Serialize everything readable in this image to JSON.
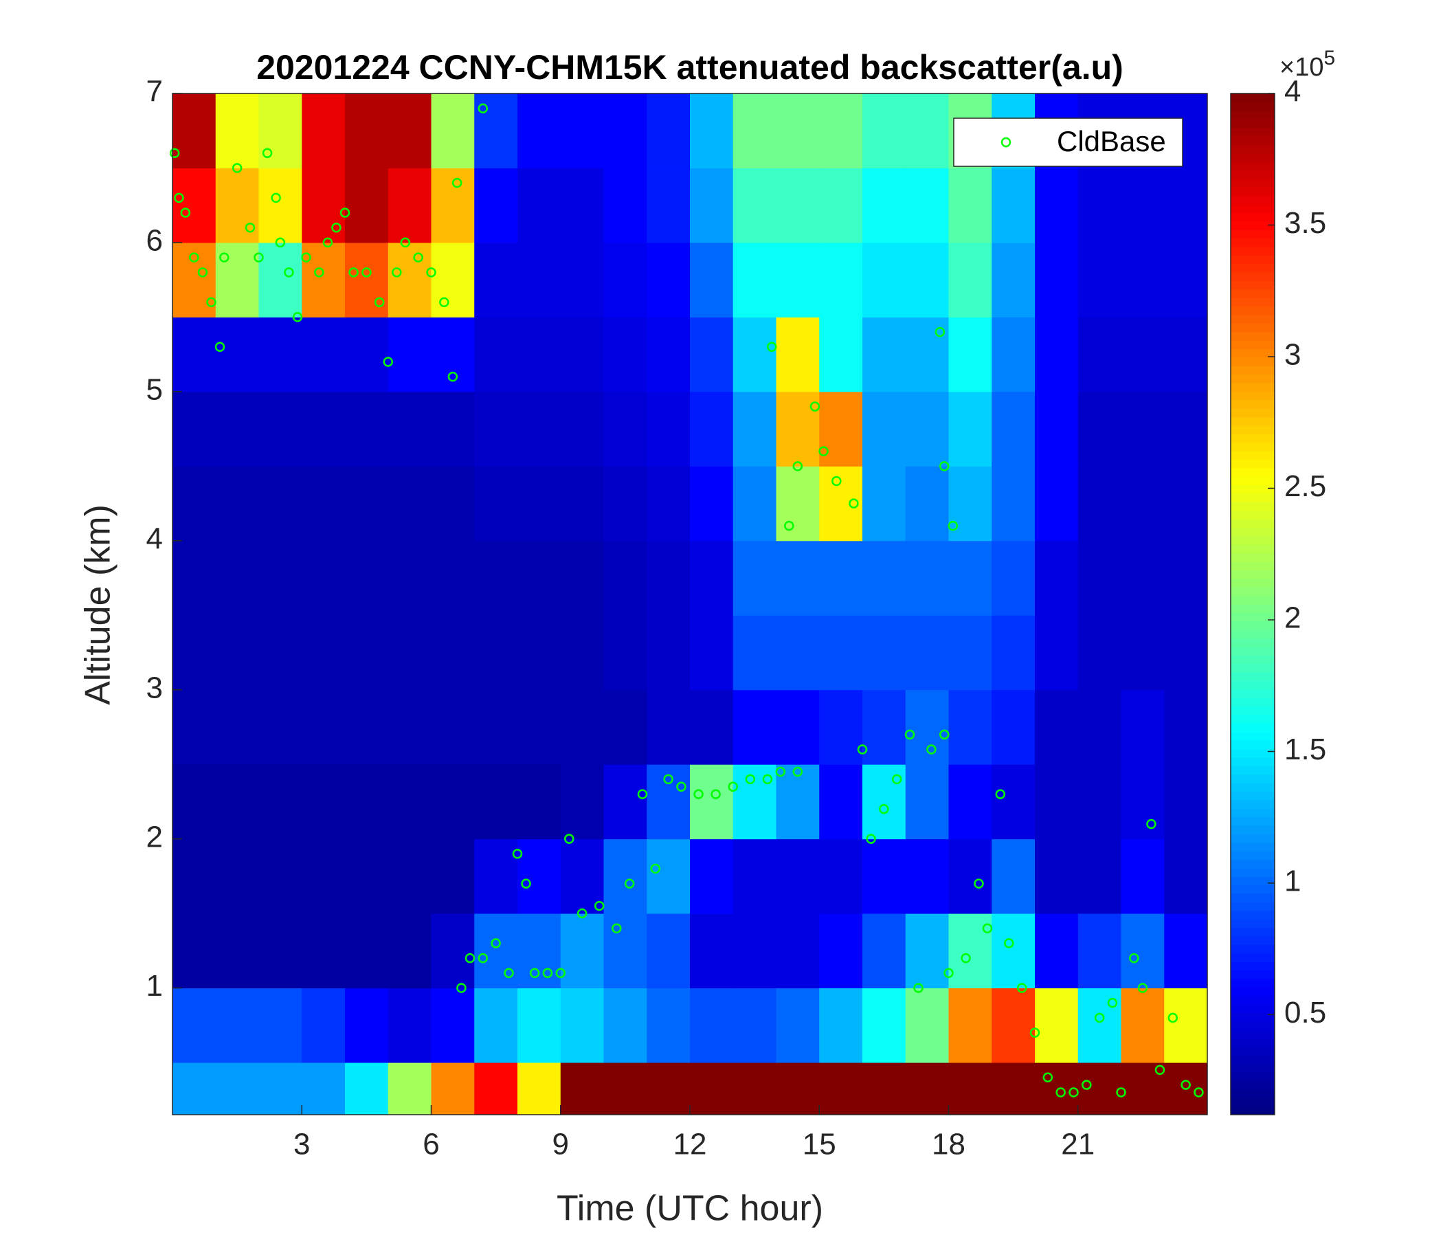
{
  "chart_data": {
    "type": "heatmap",
    "title": "20201224 CCNY-CHM15K attenuated backscatter(a.u)",
    "x_label": "Time (UTC hour)",
    "y_label": "Altitude (km)",
    "xlim": [
      0,
      24
    ],
    "ylim": [
      0.15,
      7
    ],
    "xticks": [
      3,
      6,
      9,
      12,
      15,
      18,
      21
    ],
    "yticks": [
      1,
      2,
      3,
      4,
      5,
      6,
      7
    ],
    "x_edges": [
      0,
      1,
      2,
      3,
      4,
      5,
      6,
      7,
      8,
      9,
      10,
      11,
      12,
      13,
      14,
      15,
      16,
      17,
      18,
      19,
      20,
      21,
      22,
      23,
      24
    ],
    "y_edges": [
      0.15,
      0.5,
      1,
      1.5,
      2,
      2.5,
      3,
      3.5,
      4,
      4.5,
      5,
      5.5,
      6,
      6.5,
      7
    ],
    "z": [
      [
        1.2,
        1.2,
        1.2,
        1.2,
        1.5,
        2.2,
        3.0,
        3.5,
        2.6,
        4,
        4,
        4,
        4,
        4,
        4,
        4,
        4,
        4,
        4,
        4,
        4,
        4,
        4,
        4
      ],
      [
        0.9,
        0.9,
        0.9,
        0.8,
        0.6,
        0.5,
        0.6,
        1.3,
        1.5,
        1.4,
        1.2,
        1.0,
        0.9,
        0.9,
        1.0,
        1.3,
        1.6,
        2.0,
        3.0,
        3.3,
        2.5,
        1.5,
        3.0,
        2.5
      ],
      [
        0.25,
        0.25,
        0.25,
        0.25,
        0.25,
        0.25,
        0.4,
        1.0,
        1.0,
        1.2,
        1.0,
        0.9,
        0.5,
        0.5,
        0.5,
        0.6,
        0.9,
        1.3,
        1.8,
        1.5,
        0.6,
        0.8,
        1.0,
        0.6
      ],
      [
        0.25,
        0.25,
        0.25,
        0.25,
        0.25,
        0.25,
        0.25,
        0.5,
        0.6,
        0.5,
        1.0,
        1.2,
        0.6,
        0.5,
        0.5,
        0.5,
        0.6,
        0.6,
        0.5,
        1.0,
        0.4,
        0.4,
        0.6,
        0.4
      ],
      [
        0.25,
        0.25,
        0.25,
        0.25,
        0.25,
        0.25,
        0.25,
        0.25,
        0.25,
        0.3,
        0.5,
        0.9,
        2.0,
        1.5,
        1.2,
        0.6,
        1.5,
        1.0,
        0.6,
        0.5,
        0.4,
        0.4,
        0.5,
        0.4
      ],
      [
        0.3,
        0.3,
        0.3,
        0.3,
        0.3,
        0.3,
        0.3,
        0.3,
        0.3,
        0.3,
        0.3,
        0.4,
        0.4,
        0.6,
        0.6,
        0.7,
        0.8,
        1.0,
        0.8,
        0.7,
        0.4,
        0.4,
        0.5,
        0.4
      ],
      [
        0.3,
        0.3,
        0.3,
        0.3,
        0.3,
        0.3,
        0.3,
        0.3,
        0.3,
        0.3,
        0.35,
        0.4,
        0.5,
        0.9,
        0.9,
        0.9,
        0.9,
        0.9,
        0.9,
        0.8,
        0.5,
        0.4,
        0.4,
        0.4
      ],
      [
        0.3,
        0.3,
        0.3,
        0.3,
        0.3,
        0.3,
        0.3,
        0.3,
        0.3,
        0.3,
        0.35,
        0.4,
        0.5,
        1.0,
        1.0,
        1.0,
        1.0,
        1.0,
        1.0,
        0.9,
        0.5,
        0.4,
        0.4,
        0.4
      ],
      [
        0.3,
        0.3,
        0.3,
        0.3,
        0.3,
        0.3,
        0.3,
        0.35,
        0.35,
        0.35,
        0.4,
        0.45,
        0.6,
        1.1,
        2.2,
        2.6,
        1.2,
        1.1,
        1.3,
        1.0,
        0.6,
        0.4,
        0.4,
        0.4
      ],
      [
        0.35,
        0.35,
        0.35,
        0.35,
        0.35,
        0.35,
        0.35,
        0.4,
        0.4,
        0.4,
        0.45,
        0.5,
        0.7,
        1.2,
        2.8,
        3.0,
        1.2,
        1.2,
        1.4,
        1.0,
        0.6,
        0.4,
        0.4,
        0.4
      ],
      [
        0.5,
        0.5,
        0.5,
        0.5,
        0.5,
        0.6,
        0.6,
        0.45,
        0.45,
        0.45,
        0.5,
        0.55,
        0.8,
        1.4,
        2.6,
        1.6,
        1.3,
        1.3,
        1.6,
        1.1,
        0.6,
        0.45,
        0.45,
        0.45
      ],
      [
        3.0,
        2.2,
        1.8,
        3.0,
        3.2,
        2.8,
        2.5,
        0.5,
        0.5,
        0.5,
        0.55,
        0.6,
        1.0,
        1.6,
        1.6,
        1.6,
        1.5,
        1.5,
        1.8,
        1.2,
        0.6,
        0.5,
        0.5,
        0.5
      ],
      [
        3.5,
        2.8,
        2.6,
        3.6,
        3.8,
        3.6,
        2.8,
        0.6,
        0.5,
        0.5,
        0.6,
        0.7,
        1.2,
        1.8,
        1.8,
        1.8,
        1.6,
        1.6,
        1.9,
        1.3,
        0.6,
        0.5,
        0.5,
        0.5
      ],
      [
        3.8,
        2.5,
        2.4,
        3.6,
        3.8,
        3.8,
        2.2,
        0.8,
        0.6,
        0.6,
        0.6,
        0.7,
        1.3,
        2.0,
        2.0,
        2.0,
        1.8,
        1.8,
        2.0,
        1.4,
        0.6,
        0.5,
        0.5,
        0.5
      ]
    ],
    "clim": [
      0.12,
      4
    ],
    "colormap": "jet",
    "colorbar_ticks": [
      0.5,
      1,
      1.5,
      2,
      2.5,
      3,
      3.5,
      4
    ],
    "colorbar_multiplier": "×10",
    "colorbar_exponent": "5",
    "legend": "northeast",
    "series": [
      {
        "name": "CldBase",
        "color": "#00ff00",
        "x": [
          0.05,
          0.15,
          0.3,
          0.5,
          0.7,
          0.9,
          1.1,
          1.2,
          1.5,
          1.8,
          2.0,
          2.2,
          2.4,
          2.5,
          2.7,
          2.9,
          3.1,
          3.4,
          3.6,
          3.8,
          4.0,
          4.2,
          4.5,
          4.8,
          5.0,
          5.2,
          5.4,
          5.7,
          6.0,
          6.3,
          6.5,
          6.6,
          7.2,
          6.7,
          6.9,
          7.2,
          7.5,
          7.8,
          8.0,
          8.2,
          8.4,
          8.7,
          9.0,
          9.2,
          9.5,
          9.9,
          10.3,
          10.6,
          10.9,
          11.2,
          11.5,
          11.8,
          12.2,
          12.6,
          13.0,
          13.4,
          13.8,
          14.1,
          14.5,
          13.9,
          14.3,
          14.5,
          14.9,
          15.1,
          15.4,
          15.8,
          16.0,
          16.2,
          16.5,
          16.8,
          17.1,
          17.3,
          17.6,
          17.9,
          17.9,
          18.1,
          17.8,
          18.0,
          18.4,
          18.7,
          18.9,
          19.2,
          19.4,
          19.7,
          20.0,
          20.3,
          20.6,
          20.9,
          21.2,
          21.5,
          21.8,
          22.0,
          22.3,
          22.5,
          22.7,
          22.9,
          23.2,
          23.5,
          23.8
        ],
        "y": [
          6.6,
          6.3,
          6.2,
          5.9,
          5.8,
          5.6,
          5.3,
          5.9,
          6.5,
          6.1,
          5.9,
          6.6,
          6.3,
          6.0,
          5.8,
          5.5,
          5.9,
          5.8,
          6.0,
          6.1,
          6.2,
          5.8,
          5.8,
          5.6,
          5.2,
          5.8,
          6.0,
          5.9,
          5.8,
          5.6,
          5.1,
          6.4,
          6.9,
          1.0,
          1.2,
          1.2,
          1.3,
          1.1,
          1.9,
          1.7,
          1.1,
          1.1,
          1.1,
          2.0,
          1.5,
          1.55,
          1.4,
          1.7,
          2.3,
          1.8,
          2.4,
          2.35,
          2.3,
          2.3,
          2.35,
          2.4,
          2.4,
          2.45,
          2.45,
          5.3,
          4.1,
          4.5,
          4.9,
          4.6,
          4.4,
          4.25,
          2.6,
          2.0,
          2.2,
          2.4,
          2.7,
          1.0,
          2.6,
          2.7,
          4.5,
          4.1,
          5.4,
          1.1,
          1.2,
          1.7,
          1.4,
          2.3,
          1.3,
          1.0,
          0.7,
          0.4,
          0.3,
          0.3,
          0.35,
          0.8,
          0.9,
          0.3,
          1.2,
          1.0,
          2.1,
          0.45,
          0.8,
          0.35,
          0.3
        ]
      }
    ]
  }
}
